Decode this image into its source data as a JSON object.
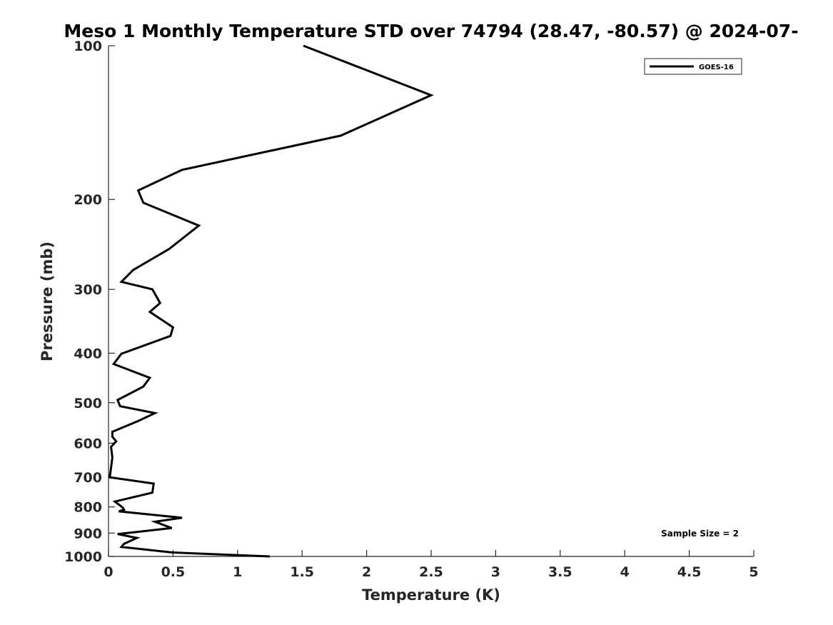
{
  "chart_data": {
    "type": "line",
    "title": "Meso 1 Monthly Temperature STD over 74794 (28.47, -80.57) @ 2024-07-",
    "xlabel": "Temperature (K)",
    "ylabel": "Pressure (mb)",
    "xlim": [
      0,
      5
    ],
    "ylim": [
      100,
      1000
    ],
    "y_scale": "log",
    "y_reversed": true,
    "x_ticks": [
      "0",
      "0.5",
      "1",
      "1.5",
      "2",
      "2.5",
      "3",
      "3.5",
      "4",
      "4.5",
      "5"
    ],
    "y_ticks": [
      "100",
      "200",
      "300",
      "400",
      "500",
      "600",
      "700",
      "800",
      "900",
      "1000"
    ],
    "grid": false,
    "legend": {
      "position": "top-right",
      "entries": [
        "GOES-16"
      ]
    },
    "annotation": "Sample Size = 2",
    "series": [
      {
        "name": "GOES-16",
        "color": "#000000",
        "points": [
          [
            1.51,
            100
          ],
          [
            2.5,
            125
          ],
          [
            1.8,
            150
          ],
          [
            0.57,
            175
          ],
          [
            0.23,
            192
          ],
          [
            0.27,
            203
          ],
          [
            0.7,
            225
          ],
          [
            0.47,
            250
          ],
          [
            0.19,
            275
          ],
          [
            0.1,
            290
          ],
          [
            0.34,
            300
          ],
          [
            0.4,
            319
          ],
          [
            0.32,
            332
          ],
          [
            0.5,
            356
          ],
          [
            0.48,
            370
          ],
          [
            0.1,
            401
          ],
          [
            0.04,
            420
          ],
          [
            0.32,
            447
          ],
          [
            0.27,
            465
          ],
          [
            0.07,
            494
          ],
          [
            0.09,
            508
          ],
          [
            0.36,
            524
          ],
          [
            0.23,
            543
          ],
          [
            0.03,
            570
          ],
          [
            0.03,
            583
          ],
          [
            0.06,
            595
          ],
          [
            0.02,
            610
          ],
          [
            0.03,
            640
          ],
          [
            0.02,
            670
          ],
          [
            0.01,
            700
          ],
          [
            0.35,
            720
          ],
          [
            0.34,
            750
          ],
          [
            0.05,
            781
          ],
          [
            0.11,
            802
          ],
          [
            0.12,
            810
          ],
          [
            0.08,
            816
          ],
          [
            0.57,
            840
          ],
          [
            0.36,
            855
          ],
          [
            0.49,
            880
          ],
          [
            0.07,
            904
          ],
          [
            0.22,
            920
          ],
          [
            0.12,
            945
          ],
          [
            0.1,
            958
          ],
          [
            0.49,
            982
          ],
          [
            1.25,
            1000
          ]
        ]
      }
    ]
  }
}
